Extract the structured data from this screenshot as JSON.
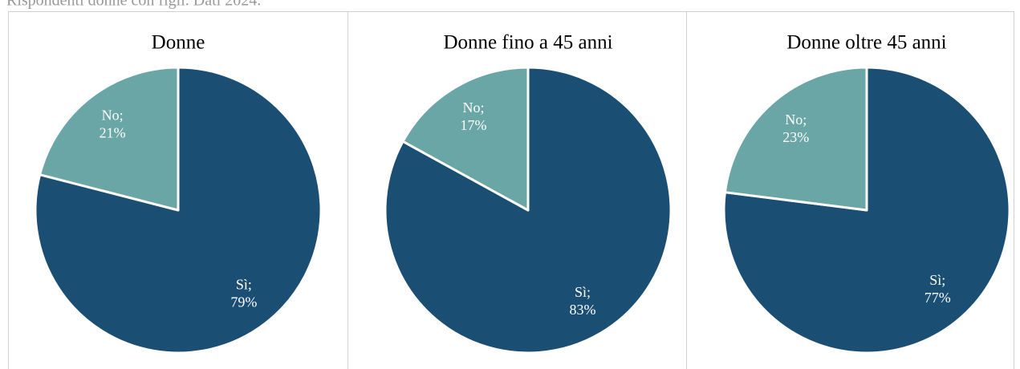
{
  "caption": "Rispondenti donne con figli. Dati 2024.",
  "chart_data": [
    {
      "type": "pie",
      "title": "Donne",
      "values": [
        79,
        21
      ],
      "value_labels": [
        "Sì; 79%",
        "No; 21%"
      ],
      "colors": [
        "#1b4e73",
        "#6aa6a6"
      ]
    },
    {
      "type": "pie",
      "title": "Donne fino a 45 anni",
      "values": [
        83,
        17
      ],
      "value_labels": [
        "Sì; 83%",
        "No; 17%"
      ],
      "colors": [
        "#1b4e73",
        "#6aa6a6"
      ]
    },
    {
      "type": "pie",
      "title": "Donne oltre 45 anni",
      "values": [
        77,
        23
      ],
      "value_labels": [
        "Sì; 77%",
        "No; 23%"
      ],
      "colors": [
        "#1b4e73",
        "#6aa6a6"
      ]
    }
  ]
}
